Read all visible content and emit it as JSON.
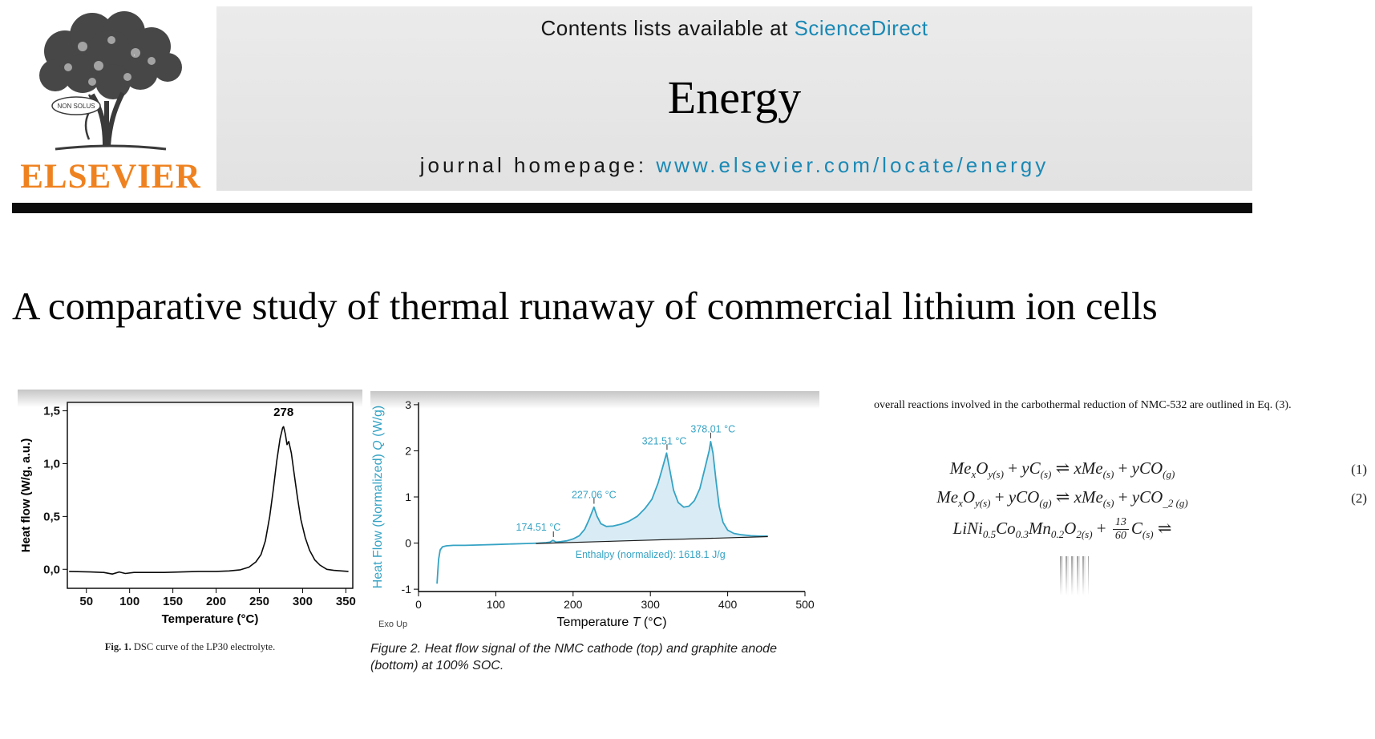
{
  "colors": {
    "link_teal": "#1a89b5",
    "elsevier_orange": "#ef8220",
    "chart_teal": "#35a3c4",
    "header_gray": "#e5e5e5"
  },
  "header": {
    "contents_prefix": "Contents lists available at ",
    "contents_link": "ScienceDirect",
    "journal_title": "Energy",
    "homepage_prefix": "journal homepage: ",
    "homepage_link": "www.elsevier.com/locate/energy",
    "elsevier_wordmark": "ELSEVIER",
    "ribbon_text": "NON SOLUS"
  },
  "article": {
    "title": "A comparative study of thermal runaway of commercial lithium ion cells"
  },
  "figure1": {
    "caption_label": "Fig. 1.",
    "caption_text": " DSC curve of the LP30 electrolyte."
  },
  "figure2": {
    "caption": "Figure 2. Heat flow signal of the NMC cathode (top) and graphite anode (bottom) at 100% SOC."
  },
  "right_column": {
    "lead_paragraph": "overall reactions involved in the carbothermal reduction of NMC-532 are outlined in Eq. (3).",
    "equations": [
      {
        "number": "(1)",
        "tokens": [
          {
            "t": "Me"
          },
          {
            "s": "x"
          },
          {
            "t": "O"
          },
          {
            "s": "y(s)"
          },
          {
            "r": " + "
          },
          {
            "t": "yC"
          },
          {
            "s": "(s)"
          },
          {
            "r": " ⇌ "
          },
          {
            "t": "xMe"
          },
          {
            "s": "(s)"
          },
          {
            "r": " + "
          },
          {
            "t": "yCO"
          },
          {
            "s": "(g)"
          }
        ]
      },
      {
        "number": "(2)",
        "tokens": [
          {
            "t": "Me"
          },
          {
            "s": "x"
          },
          {
            "t": "O"
          },
          {
            "s": "y(s)"
          },
          {
            "r": " + "
          },
          {
            "t": "yCO"
          },
          {
            "s": "(g)"
          },
          {
            "r": " ⇌ "
          },
          {
            "t": "xMe"
          },
          {
            "s": "(s)"
          },
          {
            "r": " + "
          },
          {
            "t": "yCO"
          },
          {
            "s": "_2 (g)"
          }
        ]
      },
      {
        "number": "",
        "tokens": [
          {
            "t": "LiNi"
          },
          {
            "s": "0.5"
          },
          {
            "t": "Co"
          },
          {
            "s": "0.3"
          },
          {
            "t": "Mn"
          },
          {
            "s": "0.2"
          },
          {
            "t": "O"
          },
          {
            "s": "2(s)"
          },
          {
            "r": " + "
          },
          {
            "f": [
              "13",
              "60"
            ]
          },
          {
            "t": "C"
          },
          {
            "s": "(s)"
          },
          {
            "r": " ⇌"
          }
        ]
      }
    ]
  },
  "chart_data": [
    {
      "id": "fig1",
      "type": "line",
      "title": "",
      "xlabel": "Temperature (°C)",
      "ylabel": "Heat flow (W/g, a.u.)",
      "xlabel_parts": [
        {
          "t": "Temperature (°C)"
        }
      ],
      "ylabel_parts": [
        {
          "t": "Heat flow (W/g, a.u.)"
        }
      ],
      "xlim": [
        28,
        358
      ],
      "ylim": [
        -0.18,
        1.58
      ],
      "xticks": [
        50,
        100,
        150,
        200,
        250,
        300,
        350
      ],
      "yticks": [
        0,
        0.5,
        1,
        1.5
      ],
      "ytick_labels": [
        "0,0",
        "0,5",
        "1,0",
        "1,5"
      ],
      "grid": false,
      "bold": true,
      "frame": "box",
      "series": [
        {
          "name": "DSC heat flow LP30",
          "color": "#0a0a0a",
          "width": 1.6,
          "x": [
            30,
            55,
            70,
            80,
            88,
            95,
            105,
            120,
            140,
            160,
            180,
            200,
            215,
            228,
            238,
            246,
            252,
            257,
            262,
            266,
            270,
            274,
            277,
            278,
            280,
            282,
            284,
            287,
            290,
            294,
            298,
            303,
            308,
            314,
            320,
            328,
            336,
            345,
            353
          ],
          "y": [
            -0.02,
            -0.025,
            -0.03,
            -0.045,
            -0.025,
            -0.04,
            -0.03,
            -0.03,
            -0.03,
            -0.025,
            -0.02,
            -0.02,
            -0.015,
            -0.005,
            0.02,
            0.07,
            0.14,
            0.27,
            0.5,
            0.75,
            1.02,
            1.24,
            1.34,
            1.35,
            1.28,
            1.18,
            1.21,
            1.1,
            0.92,
            0.68,
            0.47,
            0.3,
            0.18,
            0.09,
            0.04,
            0,
            -0.01,
            -0.015,
            -0.02
          ]
        }
      ],
      "annotations": [
        {
          "text": "278",
          "x": 278,
          "y": 1.45,
          "color": "#000000",
          "size": 15,
          "bold": true
        }
      ]
    },
    {
      "id": "fig2",
      "type": "line",
      "title": "",
      "xlabel": "Temperature T (°C)",
      "ylabel": "Heat Flow (Normalized) Q (W/g)",
      "xlabel_parts": [
        {
          "t": "Temperature "
        },
        {
          "t": "T",
          "i": true
        },
        {
          "t": " (°C)"
        }
      ],
      "ylabel_parts": [
        {
          "t": "Heat Flow (Normalized) "
        },
        {
          "t": "Q",
          "i": true
        },
        {
          "t": " (W/g)"
        }
      ],
      "ylabel_color": "#35a3c4",
      "xlim": [
        0,
        500
      ],
      "ylim": [
        -1.05,
        3.05
      ],
      "xticks": [
        0,
        100,
        200,
        300,
        400,
        500
      ],
      "yticks": [
        -1,
        0,
        1,
        2,
        3
      ],
      "grid": false,
      "frame": "axes",
      "corner_label": "Exo Up",
      "fill": [
        165,
        450
      ],
      "fill_color": "#d9ecf5",
      "series": [
        {
          "name": "NMC cathode heat flow",
          "color": "#35a3c4",
          "width": 1.8,
          "x": [
            24,
            25,
            26,
            28,
            31,
            36,
            45,
            60,
            80,
            100,
            120,
            140,
            155,
            165,
            170,
            174,
            178,
            184,
            192,
            200,
            208,
            215,
            221,
            227,
            231,
            236,
            243,
            252,
            262,
            272,
            283,
            293,
            302,
            310,
            316,
            321,
            325,
            330,
            336,
            343,
            350,
            357,
            364,
            371,
            376,
            378,
            381,
            385,
            389,
            394,
            400,
            408,
            418,
            430,
            442,
            452
          ],
          "y": [
            -0.88,
            -0.6,
            -0.35,
            -0.15,
            -0.08,
            -0.06,
            -0.05,
            -0.05,
            -0.04,
            -0.03,
            -0.02,
            -0.01,
            0,
            0.01,
            0.02,
            0.06,
            0.02,
            0.03,
            0.05,
            0.09,
            0.16,
            0.3,
            0.52,
            0.78,
            0.58,
            0.42,
            0.36,
            0.37,
            0.41,
            0.47,
            0.58,
            0.75,
            0.95,
            1.3,
            1.65,
            1.95,
            1.6,
            1.15,
            0.88,
            0.78,
            0.8,
            0.92,
            1.18,
            1.65,
            2.0,
            2.2,
            1.95,
            1.35,
            0.8,
            0.45,
            0.28,
            0.21,
            0.18,
            0.16,
            0.15,
            0.15
          ]
        },
        {
          "name": "integration baseline",
          "color": "#1a1a1a",
          "width": 1.2,
          "x": [
            152,
            452
          ],
          "y": [
            -0.01,
            0.14
          ]
        }
      ],
      "peak_ticks": [
        [
          174.51,
          0.08
        ],
        [
          227.06,
          0.8
        ],
        [
          321.51,
          1.97
        ],
        [
          378.01,
          2.22
        ]
      ],
      "annotations": [
        {
          "text": "174.51 °C",
          "x": 155,
          "y": 0.27,
          "color": "#35a3c4",
          "size": 12.5
        },
        {
          "text": "227.06 °C",
          "x": 227,
          "y": 0.97,
          "color": "#35a3c4",
          "size": 12.5
        },
        {
          "text": "321.51 °C",
          "x": 318,
          "y": 2.14,
          "color": "#35a3c4",
          "size": 12.5
        },
        {
          "text": "378.01 °C",
          "x": 381,
          "y": 2.4,
          "color": "#35a3c4",
          "size": 12.5
        },
        {
          "text": "Enthalpy (normalized): 1618.1 J/g",
          "x": 300,
          "y": -0.32,
          "color": "#35a3c4",
          "size": 12.5
        }
      ]
    }
  ]
}
